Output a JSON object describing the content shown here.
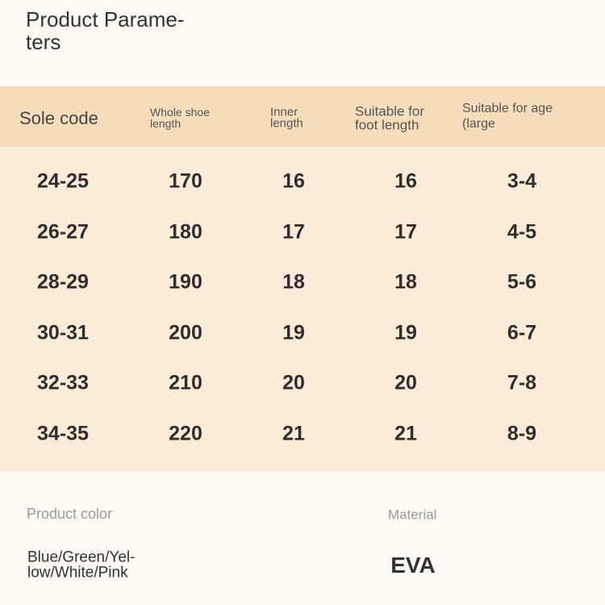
{
  "header": {
    "title_lines": [
      "Product Parame-",
      "ters"
    ]
  },
  "table": {
    "columns": [
      [
        "Sole code"
      ],
      [
        "Whole shoe",
        "length"
      ],
      [
        "Inner",
        "length"
      ],
      [
        "Suitable for",
        "foot length"
      ],
      [
        "Suitable for age",
        "(large"
      ]
    ],
    "rows": [
      [
        "24-25",
        170,
        16,
        16,
        "3-4"
      ],
      [
        "26-27",
        180,
        17,
        17,
        "4-5"
      ],
      [
        "28-29",
        190,
        18,
        18,
        "5-6"
      ],
      [
        "30-31",
        200,
        19,
        19,
        "6-7"
      ],
      [
        "32-33",
        210,
        20,
        20,
        "7-8"
      ],
      [
        "34-35",
        220,
        21,
        21,
        "8-9"
      ]
    ]
  },
  "footer": {
    "color_label": "Product color",
    "color_value_lines": [
      "Blue/Green/Yel-",
      "low/White/Pink"
    ],
    "material_label": "Material",
    "material_value": "EVA"
  }
}
